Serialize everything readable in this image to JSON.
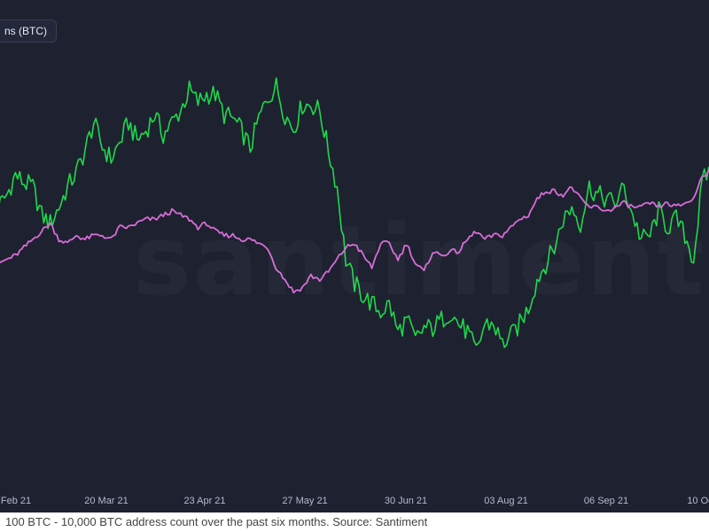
{
  "chart_data": {
    "type": "line",
    "legend": "ns (BTC)",
    "watermark": "santiment.",
    "x_ticks": [
      "Feb 21",
      "20 Mar 21",
      "23 Apr 21",
      "27 May 21",
      "30 Jun 21",
      "03 Aug 21",
      "06 Sep 21",
      "10 Oc"
    ],
    "series": [
      {
        "color": "#1ed84a",
        "values": [
          50,
          55,
          70,
          95,
          85,
          80,
          45,
          35,
          55,
          80,
          98,
          125,
          160,
          130,
          115,
          135,
          160,
          138,
          150,
          170,
          145,
          160,
          175,
          200,
          185,
          195,
          195,
          170,
          165,
          150,
          128,
          165,
          190,
          205,
          170,
          152,
          182,
          182,
          175,
          125,
          80,
          -10,
          -40,
          -55,
          -65,
          -75,
          -65,
          -100,
          -85,
          -110,
          -95,
          -95,
          -85,
          -75,
          -90,
          -100,
          -125,
          -90,
          -90,
          -115,
          -105,
          -90,
          -70,
          -35,
          -15,
          5,
          40,
          55,
          35,
          80,
          70,
          65,
          60,
          80,
          45,
          15,
          20,
          50,
          30,
          40,
          20,
          -10,
          85,
          105,
          120
        ]
      },
      {
        "color": "#d66cd6",
        "values": [
          -20,
          -15,
          -10,
          -5,
          5,
          15,
          25,
          35,
          15,
          10,
          20,
          15,
          20,
          20,
          15,
          30,
          30,
          35,
          40,
          40,
          45,
          50,
          45,
          40,
          30,
          35,
          25,
          20,
          20,
          15,
          15,
          10,
          5,
          -20,
          -35,
          -50,
          -45,
          -30,
          -35,
          -25,
          -10,
          5,
          10,
          -5,
          -20,
          10,
          10,
          -10,
          10,
          -15,
          -25,
          0,
          -5,
          0,
          0,
          15,
          25,
          15,
          20,
          20,
          30,
          40,
          45,
          65,
          75,
          75,
          70,
          80,
          65,
          55,
          55,
          50,
          55,
          60,
          55,
          55,
          60,
          55,
          60,
          55,
          60,
          65,
          95,
          100,
          110
        ]
      }
    ]
  },
  "caption": "100 BTC - 10,000 BTC address count over the past six months. Source: Santiment"
}
